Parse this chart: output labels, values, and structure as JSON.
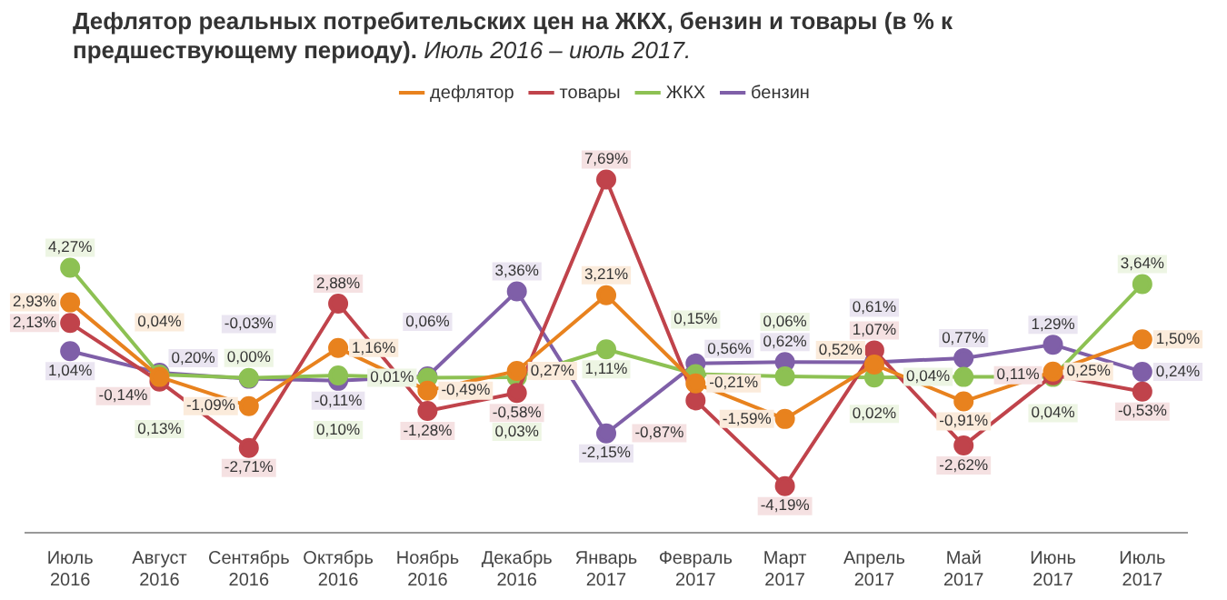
{
  "chart_data": {
    "type": "line",
    "title": "Дефлятор реальных потребительских цен на ЖКХ, бензин и товары (в % к предшествующему периоду).",
    "subtitle": "Июль 2016 – июль 2017.",
    "categories": [
      "Июль 2016",
      "Август 2016",
      "Сентябрь 2016",
      "Октябрь 2016",
      "Ноябрь 2016",
      "Декабрь 2016",
      "Январь 2017",
      "Февраль 2017",
      "Март 2017",
      "Апрель 2017",
      "Май 2017",
      "Июнь 2017",
      "Июль 2017"
    ],
    "series": [
      {
        "name": "дефлятор",
        "color": "#e8821e",
        "values": [
          2.93,
          0.04,
          -1.09,
          1.16,
          -0.49,
          0.27,
          3.21,
          -0.21,
          -1.59,
          0.52,
          -0.91,
          0.25,
          1.5
        ],
        "value_labels": [
          "2,93%",
          "0,04%",
          "-1,09%",
          "1,16%",
          "-0,49%",
          "0,27%",
          "3,21%",
          "-0,21%",
          "-1,59%",
          "0,52%",
          "-0,91%",
          "0,25%",
          "1,50%"
        ]
      },
      {
        "name": "товары",
        "color": "#c0434b",
        "values": [
          2.13,
          -0.14,
          -2.71,
          2.88,
          -1.28,
          -0.58,
          7.69,
          -0.87,
          -4.19,
          1.07,
          -2.62,
          0.11,
          -0.53
        ],
        "value_labels": [
          "2,13%",
          "-0,14%",
          "-2,71%",
          "2,88%",
          "-1,28%",
          "-0,58%",
          "7,69%",
          "-0,87%",
          "-4,19%",
          "1,07%",
          "-2,62%",
          "0,11%",
          "-0,53%"
        ]
      },
      {
        "name": "ЖКХ",
        "color": "#8dc153",
        "values": [
          4.27,
          0.13,
          0.0,
          0.1,
          0.01,
          0.03,
          1.11,
          0.15,
          0.06,
          0.02,
          0.04,
          0.04,
          3.64
        ],
        "value_labels": [
          "4,27%",
          "0,13%",
          "0,00%",
          "0,10%",
          "0,01%",
          "0,03%",
          "1,11%",
          "0,15%",
          "0,06%",
          "0,02%",
          "0,04%",
          "0,04%",
          "3,64%"
        ]
      },
      {
        "name": "бензин",
        "color": "#7f5fa8",
        "values": [
          1.04,
          0.2,
          -0.03,
          -0.11,
          0.06,
          3.36,
          -2.15,
          0.56,
          0.62,
          0.61,
          0.77,
          1.29,
          0.24
        ],
        "value_labels": [
          "1,04%",
          "0,20%",
          "-0,03%",
          "-0,11%",
          "0,06%",
          "3,36%",
          "-2,15%",
          "0,56%",
          "0,62%",
          "0,61%",
          "0,77%",
          "1,29%",
          "0,24%"
        ]
      }
    ],
    "legend": "top",
    "marker": "circle",
    "line_style": "solid",
    "grid": false
  }
}
